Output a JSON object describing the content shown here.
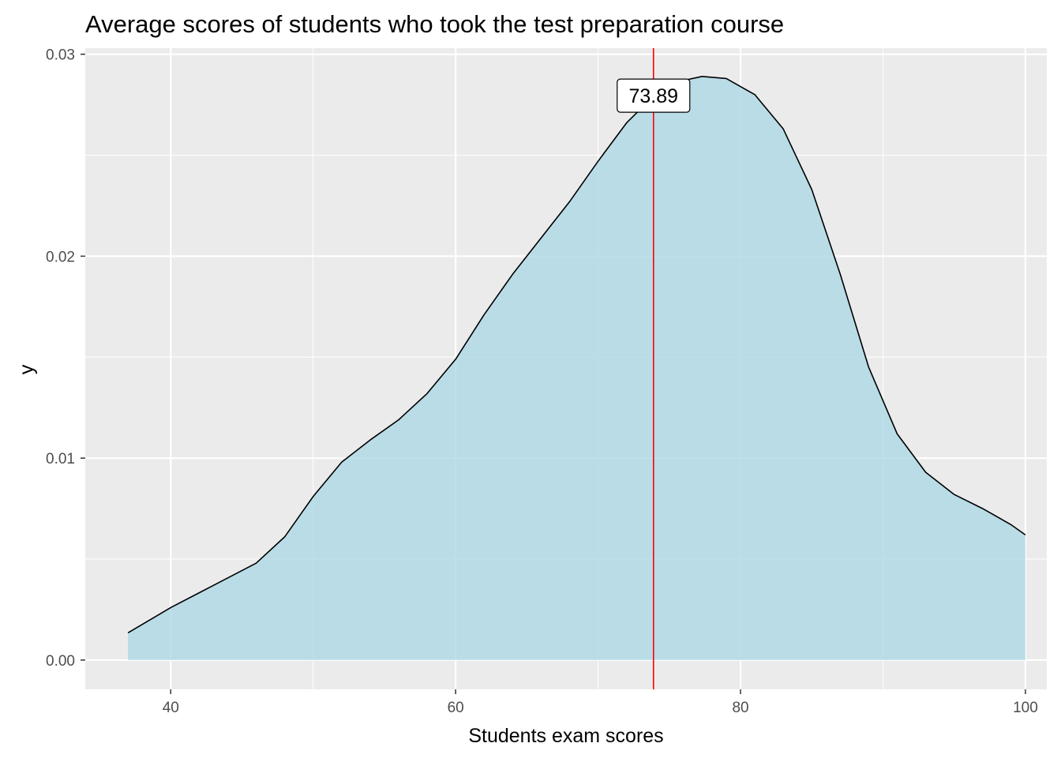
{
  "chart_data": {
    "type": "area",
    "title": "Average scores of students who took the test preparation course",
    "xlabel": "Students exam scores",
    "ylabel": "y",
    "xlim": [
      34,
      101.5
    ],
    "ylim": [
      -0.00145,
      0.0303
    ],
    "x_ticks": [
      {
        "value": 40,
        "label": "40"
      },
      {
        "value": 60,
        "label": "60"
      },
      {
        "value": 80,
        "label": "80"
      },
      {
        "value": 100,
        "label": "100"
      }
    ],
    "x_minor": [
      50,
      70,
      90
    ],
    "y_ticks": [
      {
        "value": 0,
        "label": "0.00"
      },
      {
        "value": 0.01,
        "label": "0.01"
      },
      {
        "value": 0.02,
        "label": "0.02"
      },
      {
        "value": 0.03,
        "label": "0.03"
      }
    ],
    "y_minor": [
      0.005,
      0.015,
      0.025
    ],
    "grid": true,
    "series": [
      {
        "x": [
          37,
          40,
          43,
          46,
          48,
          50,
          52,
          54,
          56,
          58,
          60,
          62,
          64,
          66,
          68,
          70,
          72,
          74,
          76,
          77.3,
          79,
          81,
          83,
          85,
          87,
          89,
          91,
          93,
          95,
          97,
          99,
          100
        ],
        "y": [
          0.00135,
          0.0026,
          0.0037,
          0.0048,
          0.0061,
          0.0081,
          0.0098,
          0.0109,
          0.0119,
          0.0132,
          0.0149,
          0.0171,
          0.0191,
          0.0209,
          0.0227,
          0.0247,
          0.0266,
          0.028,
          0.0287,
          0.0289,
          0.0288,
          0.028,
          0.0263,
          0.0233,
          0.0191,
          0.0145,
          0.0112,
          0.0093,
          0.0082,
          0.0075,
          0.0067,
          0.0062
        ]
      }
    ],
    "colors": {
      "fill": "#add8e6",
      "line": "#000000",
      "vline": "#ff0000",
      "panel_bg": "#ebebeb",
      "grid": "#ffffff"
    },
    "vline": {
      "x": 73.89
    },
    "annotations": [
      {
        "text": "73.89",
        "x": 73.89,
        "y": 0.02795
      }
    ]
  }
}
